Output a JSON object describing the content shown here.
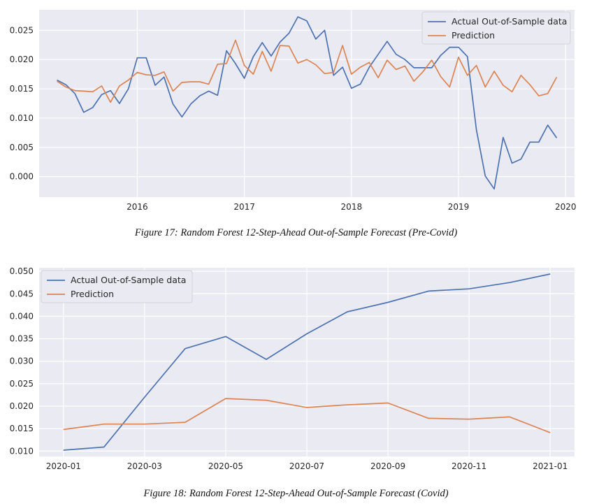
{
  "colors": {
    "actual": "#4c72b0",
    "prediction": "#dd8452",
    "background": "#eaeaf2",
    "grid": "#ffffff"
  },
  "captions": [
    "Figure 17: Random Forest 12-Step-Ahead Out-of-Sample Forecast (Pre-Covid)",
    "Figure 18: Random Forest 12-Step-Ahead Out-of-Sample Forecast (Covid)"
  ],
  "chart_data": [
    {
      "type": "line",
      "title": "",
      "xlabel": "",
      "ylabel": "",
      "x_is_date": true,
      "x_start": "2015-04",
      "x_freq": "monthly",
      "xlim": [
        "2015-02",
        "2020-02"
      ],
      "ylim": [
        -0.0035,
        0.0285
      ],
      "x_ticks": [
        "2016",
        "2017",
        "2018",
        "2019",
        "2020"
      ],
      "y_ticks": [
        "0.000",
        "0.005",
        "0.010",
        "0.015",
        "0.020",
        "0.025"
      ],
      "grid": true,
      "legend_position": "top-right",
      "series": [
        {
          "name": "Actual Out-of-Sample data",
          "values": [
            0.0165,
            0.0157,
            0.0142,
            0.011,
            0.0118,
            0.014,
            0.0147,
            0.0125,
            0.015,
            0.0203,
            0.0203,
            0.0156,
            0.017,
            0.0124,
            0.0102,
            0.0124,
            0.0138,
            0.0146,
            0.0139,
            0.0215,
            0.0193,
            0.0168,
            0.0205,
            0.0229,
            0.0206,
            0.023,
            0.0245,
            0.0273,
            0.0266,
            0.0235,
            0.025,
            0.0173,
            0.0187,
            0.0151,
            0.0158,
            0.0187,
            0.0209,
            0.0231,
            0.0209,
            0.02,
            0.0186,
            0.0186,
            0.0186,
            0.0207,
            0.0221,
            0.0221,
            0.0205,
            0.008,
            0.0001,
            -0.0021,
            0.0067,
            0.0023,
            0.003,
            0.0059,
            0.0059,
            0.0088,
            0.0066
          ]
        },
        {
          "name": "Prediction",
          "values": [
            0.0163,
            0.0153,
            0.0147,
            0.0146,
            0.0145,
            0.0155,
            0.0127,
            0.0155,
            0.0165,
            0.0178,
            0.0174,
            0.0173,
            0.0179,
            0.0146,
            0.0161,
            0.0162,
            0.0162,
            0.0158,
            0.0192,
            0.0193,
            0.0233,
            0.019,
            0.0175,
            0.0214,
            0.018,
            0.0224,
            0.0223,
            0.0194,
            0.02,
            0.0191,
            0.0176,
            0.0178,
            0.0224,
            0.0175,
            0.0187,
            0.0195,
            0.0169,
            0.0199,
            0.0183,
            0.0189,
            0.0163,
            0.0179,
            0.0199,
            0.0171,
            0.0153,
            0.0204,
            0.0173,
            0.019,
            0.0153,
            0.018,
            0.0156,
            0.0145,
            0.0173,
            0.0157,
            0.0138,
            0.0142,
            0.017
          ]
        }
      ]
    },
    {
      "type": "line",
      "title": "",
      "xlabel": "",
      "ylabel": "",
      "x": [
        "2020-01",
        "2020-02",
        "2020-03",
        "2020-04",
        "2020-05",
        "2020-06",
        "2020-07",
        "2020-08",
        "2020-09",
        "2020-10",
        "2020-11",
        "2020-12",
        "2021-01"
      ],
      "xlim": [
        -0.6,
        12.6
      ],
      "ylim": [
        0.0088,
        0.0508
      ],
      "x_ticks": [
        "2020-01",
        "2020-03",
        "2020-05",
        "2020-07",
        "2020-09",
        "2020-11",
        "2021-01"
      ],
      "y_ticks": [
        "0.010",
        "0.015",
        "0.020",
        "0.025",
        "0.030",
        "0.035",
        "0.040",
        "0.045",
        "0.050"
      ],
      "grid": true,
      "legend_position": "top-left",
      "series": [
        {
          "name": "Actual Out-of-Sample data",
          "values": [
            0.0102,
            0.0109,
            0.022,
            0.0328,
            0.0355,
            0.0304,
            0.0361,
            0.041,
            0.0431,
            0.0456,
            0.0461,
            0.0475,
            0.0494
          ]
        },
        {
          "name": "Prediction",
          "values": [
            0.0148,
            0.016,
            0.016,
            0.0164,
            0.0217,
            0.0213,
            0.0197,
            0.0203,
            0.0207,
            0.0173,
            0.0171,
            0.0176,
            0.0141
          ]
        }
      ]
    }
  ]
}
